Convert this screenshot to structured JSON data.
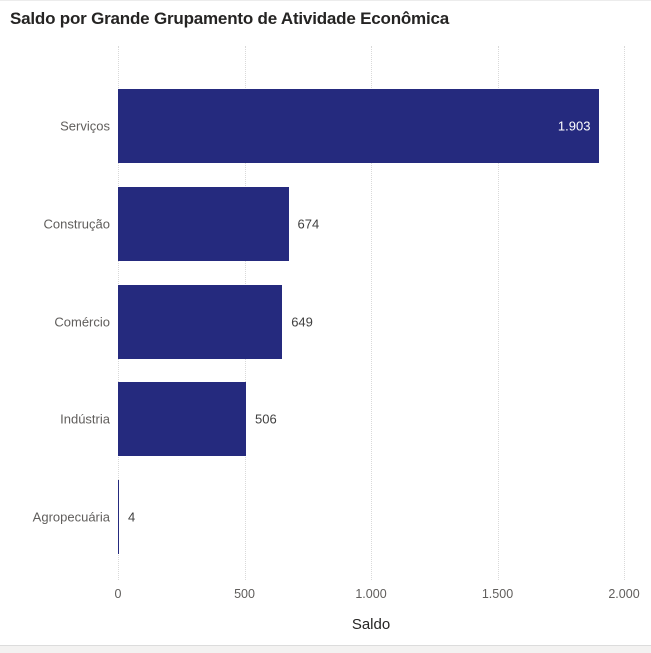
{
  "chart_data": {
    "type": "bar",
    "orientation": "horizontal",
    "title": "Saldo por Grande Grupamento de Atividade Econômica",
    "xlabel": "Saldo",
    "ylabel": "",
    "categories": [
      "Serviços",
      "Construção",
      "Comércio",
      "Indústria",
      "Agropecuária"
    ],
    "values": [
      1903,
      674,
      649,
      506,
      4
    ],
    "value_labels": [
      "1.903",
      "674",
      "649",
      "506",
      "4"
    ],
    "label_placement": [
      "inside",
      "outside",
      "outside",
      "outside",
      "outside"
    ],
    "xlim": [
      0,
      2000
    ],
    "x_tick_values": [
      0,
      500,
      1000,
      1500,
      2000
    ],
    "x_tick_labels": [
      "0",
      "500",
      "1.000",
      "1.500",
      "2.000"
    ],
    "grid": "dotted-vertical",
    "legend": "none",
    "bar_color": "#252a7e",
    "label_inside_color": "#ffffff",
    "label_outside_color": "#404040",
    "gridline_color": "#d9d9d9"
  },
  "theme": {
    "page_background": "#ffffff",
    "footer_strip_color": "#f3f2f1",
    "title_color": "#252423",
    "axis_text_color": "#605e5c"
  }
}
